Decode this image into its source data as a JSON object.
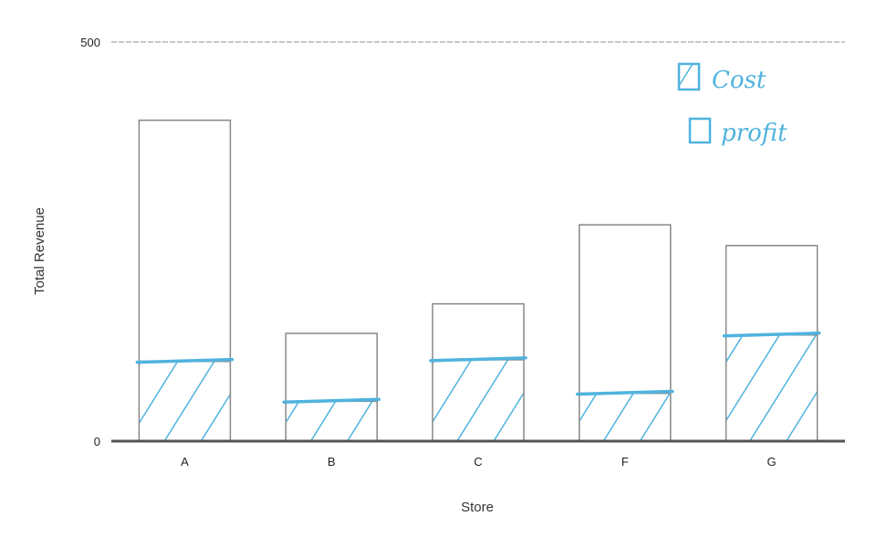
{
  "chart_data": {
    "type": "bar",
    "xlabel": "Store",
    "ylabel": "Total Revenue",
    "categories": [
      "A",
      "B",
      "C",
      "F",
      "G"
    ],
    "ylim": [
      0,
      500
    ],
    "yticks": [
      "0",
      "500"
    ],
    "series": [
      {
        "name": "Cost",
        "values": [
          100,
          50,
          102,
          60,
          133
        ]
      },
      {
        "name": "Profit",
        "values": [
          302,
          85,
          70,
          211,
          112
        ]
      }
    ],
    "totals": [
      402,
      135,
      172,
      271,
      245
    ],
    "grid": true,
    "legend_position": "top-right",
    "legend": [
      {
        "label": "Cost",
        "pattern": "hatched"
      },
      {
        "label": "profit",
        "pattern": "empty"
      }
    ],
    "colors": {
      "annotation": "#4fb3de",
      "bar_outline": "#888888",
      "axis": "#555555",
      "grid": "#c8c8c8"
    }
  }
}
